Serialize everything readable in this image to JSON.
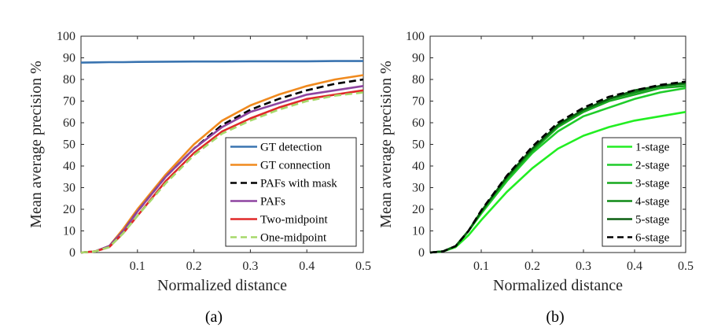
{
  "figure": {
    "panel_labels": [
      "(a)",
      "(b)"
    ]
  },
  "chart_data": [
    {
      "type": "line",
      "panel": "(a)",
      "xlabel": "Normalized distance",
      "ylabel": "Mean average precision %",
      "xlim": [
        0,
        0.5
      ],
      "ylim": [
        0,
        100
      ],
      "xticks": [
        "0.1",
        "0.2",
        "0.3",
        "0.4",
        "0.5"
      ],
      "yticks": [
        "0",
        "10",
        "20",
        "30",
        "40",
        "50",
        "60",
        "70",
        "80",
        "90",
        "100"
      ],
      "grid": false,
      "legend_position": "lower-right",
      "x": [
        0,
        0.025,
        0.05,
        0.075,
        0.1,
        0.15,
        0.2,
        0.25,
        0.3,
        0.35,
        0.4,
        0.45,
        0.5
      ],
      "series": [
        {
          "name": "GT detection",
          "color": "#3a74b0",
          "dash": "solid",
          "values": [
            87.8,
            87.9,
            88.0,
            88.0,
            88.1,
            88.2,
            88.3,
            88.3,
            88.4,
            88.4,
            88.4,
            88.5,
            88.5
          ]
        },
        {
          "name": "GT connection",
          "color": "#f08a1e",
          "dash": "solid",
          "values": [
            0,
            0.5,
            3,
            11,
            20,
            36,
            50,
            61,
            68,
            73,
            77,
            80,
            82
          ]
        },
        {
          "name": "PAFs with mask",
          "color": "#000000",
          "dash": "dashed",
          "values": [
            0,
            0.5,
            3,
            10,
            19,
            35,
            48,
            59,
            66,
            71,
            75,
            78,
            80
          ]
        },
        {
          "name": "PAFs",
          "color": "#8e44a0",
          "dash": "solid",
          "values": [
            0,
            0.5,
            3,
            10,
            19,
            35,
            48,
            58,
            65,
            69,
            73,
            75,
            77
          ]
        },
        {
          "name": "Two-midpoint",
          "color": "#e02828",
          "dash": "solid",
          "values": [
            0,
            0.5,
            2.5,
            9,
            17,
            33,
            46,
            56,
            62,
            67,
            71,
            73,
            75
          ]
        },
        {
          "name": "One-midpoint",
          "color": "#a6d96a",
          "dash": "dashed",
          "values": [
            0,
            0.5,
            2.5,
            9,
            17,
            32,
            45,
            55,
            61,
            66,
            70,
            72.5,
            74
          ]
        }
      ]
    },
    {
      "type": "line",
      "panel": "(b)",
      "xlabel": "Normalized distance",
      "ylabel": "Mean average precision %",
      "xlim": [
        0,
        0.5
      ],
      "ylim": [
        0,
        100
      ],
      "xticks": [
        "0.1",
        "0.2",
        "0.3",
        "0.4",
        "0.5"
      ],
      "yticks": [
        "0",
        "10",
        "20",
        "30",
        "40",
        "50",
        "60",
        "70",
        "80",
        "90",
        "100"
      ],
      "grid": false,
      "legend_position": "lower-right",
      "x": [
        0,
        0.025,
        0.05,
        0.075,
        0.1,
        0.15,
        0.2,
        0.25,
        0.3,
        0.35,
        0.4,
        0.45,
        0.5
      ],
      "series": [
        {
          "name": "1-stage",
          "color": "#22ee22",
          "dash": "solid",
          "values": [
            0,
            0.5,
            2.5,
            8,
            15,
            28,
            39,
            48,
            54,
            58,
            61,
            63,
            65
          ]
        },
        {
          "name": "2-stage",
          "color": "#1fcc2a",
          "dash": "solid",
          "values": [
            0,
            0.5,
            3,
            10,
            18,
            33,
            46,
            56,
            63,
            67,
            71,
            74,
            76
          ]
        },
        {
          "name": "3-stage",
          "color": "#17a81f",
          "dash": "solid",
          "values": [
            0,
            0.5,
            3,
            10,
            19,
            34,
            47,
            58,
            65,
            70,
            73,
            76,
            77
          ]
        },
        {
          "name": "4-stage",
          "color": "#0f8a17",
          "dash": "solid",
          "values": [
            0,
            0.5,
            3,
            10,
            19,
            35,
            48,
            59,
            66,
            71,
            74,
            77,
            78
          ]
        },
        {
          "name": "5-stage",
          "color": "#0a5f10",
          "dash": "solid",
          "values": [
            0,
            0.5,
            3,
            10,
            19,
            35,
            48,
            59,
            66,
            71,
            75,
            77,
            78.5
          ]
        },
        {
          "name": "6-stage",
          "color": "#000000",
          "dash": "dashed",
          "values": [
            0,
            0.5,
            3,
            10,
            19.5,
            35.5,
            49,
            60,
            67,
            72,
            75,
            77.5,
            79
          ]
        }
      ]
    }
  ]
}
